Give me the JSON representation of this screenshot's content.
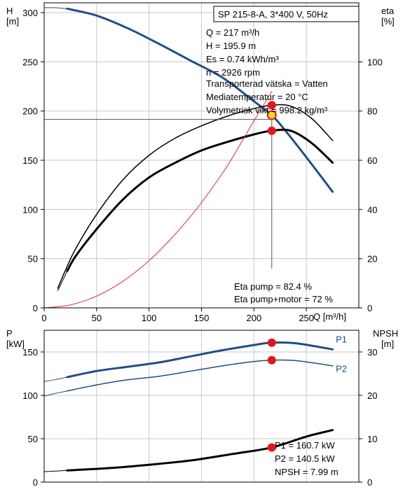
{
  "colors": {
    "head_curve": "#1f4e86",
    "power_curve": "#1f4e86",
    "efficiency": "#000000",
    "system_curve": "#e03030",
    "marker": "#e8141c",
    "marker_eta": "#f0e020",
    "grid": "#c8c8c8",
    "guide": "#555555"
  },
  "chart_data": [
    {
      "id": "upper",
      "type": "line",
      "xlabel": "Q [m³/h]",
      "ylabel_lines": [
        "H",
        "[m]"
      ],
      "y2label_lines": [
        "eta",
        "[%]"
      ],
      "xlim": [
        0,
        300
      ],
      "ylim": [
        0,
        310
      ],
      "y2lim": [
        0,
        124
      ],
      "x_ticks": [
        "0",
        "50",
        "100",
        "150",
        "200",
        "250"
      ],
      "x_tick_values": [
        0,
        50,
        100,
        150,
        200,
        250
      ],
      "y_ticks": [
        "0",
        "50",
        "100",
        "150",
        "200",
        "250",
        "300"
      ],
      "y_tick_values": [
        0,
        50,
        100,
        150,
        200,
        250,
        300
      ],
      "y2_ticks": [
        "0",
        "20",
        "40",
        "60",
        "80",
        "100"
      ],
      "y2_tick_values": [
        0,
        20,
        40,
        60,
        80,
        100
      ],
      "grid": true,
      "title": "SP 215-8-A, 3*400 V, 50Hz",
      "info_lines": [
        "Q = 217 m³/h",
        "H = 195.9 m",
        "Es = 0.74 kWh/m³",
        "n = 2926 rpm",
        "Transporterad vätska = Vatten",
        "Mediatemperatur = 20 °C",
        "Volymetrisk vikt = 998.2 kg/m³"
      ],
      "eta_lines": [
        "Eta pump = 82.4 %",
        "Eta pump+motor = 72 %"
      ],
      "series": [
        {
          "key": "H-thin",
          "axis": "y",
          "width": 1,
          "color_key": "head_curve",
          "x": [
            0,
            10,
            22
          ],
          "y": [
            305,
            305,
            304
          ]
        },
        {
          "key": "H",
          "axis": "y",
          "width": 3,
          "color_key": "head_curve",
          "x": [
            22,
            50,
            80,
            110,
            140,
            170,
            200,
            217,
            230,
            250,
            275
          ],
          "y": [
            304,
            297,
            284,
            268,
            251,
            234,
            210,
            195.9,
            180,
            153,
            118
          ]
        },
        {
          "key": "eta-pump",
          "axis": "y2",
          "width": 1.5,
          "color_key": "efficiency",
          "x": [
            13,
            20,
            30,
            50,
            75,
            100,
            125,
            150,
            175,
            200,
            217,
            235,
            255,
            275
          ],
          "y": [
            8,
            15,
            24,
            38,
            52,
            62,
            69,
            74,
            78,
            81,
            82.4,
            82,
            77,
            68
          ]
        },
        {
          "key": "eta-pump-motor",
          "axis": "y2",
          "width": 3,
          "color_key": "efficiency",
          "x": [
            22,
            30,
            50,
            75,
            100,
            125,
            150,
            175,
            200,
            217,
            235,
            255,
            275
          ],
          "y": [
            15,
            21,
            32,
            44,
            53,
            59,
            64,
            67.5,
            70.5,
            72,
            72,
            67,
            59
          ]
        },
        {
          "key": "eta-motor-thin",
          "axis": "y2",
          "width": 1,
          "color_key": "efficiency",
          "x": [
            13,
            22
          ],
          "y": [
            7,
            15
          ]
        },
        {
          "key": "system",
          "axis": "y",
          "width": 1,
          "color_key": "system_curve",
          "x": [
            0,
            25,
            50,
            75,
            100,
            125,
            150,
            175,
            200,
            217
          ],
          "y": [
            0,
            3,
            12,
            27,
            48,
            75,
            107,
            145,
            190,
            220
          ]
        }
      ],
      "markers": [
        {
          "x": 217,
          "y": 206,
          "axis": "y",
          "color_key": "marker"
        },
        {
          "x": 217,
          "y": 195.9,
          "axis": "y",
          "color_key": "marker_eta"
        },
        {
          "x": 217,
          "y": 180,
          "axis": "y",
          "color_key": "marker"
        }
      ],
      "guides": [
        {
          "x1": 0,
          "y1": 191.5,
          "x2": 217,
          "y2": 191.5
        },
        {
          "x1": 217,
          "y1": 191.5,
          "x2": 217,
          "y2": 40
        }
      ]
    },
    {
      "id": "lower",
      "type": "line",
      "ylabel_lines": [
        "P",
        "[kW]"
      ],
      "y2label_lines": [
        "NPSH",
        "[m]"
      ],
      "xlim": [
        0,
        300
      ],
      "ylim": [
        0,
        175
      ],
      "y2lim": [
        0,
        35
      ],
      "y_ticks": [
        "0",
        "50",
        "100",
        "150"
      ],
      "y_tick_values": [
        0,
        50,
        100,
        150
      ],
      "y2_ticks": [
        "0",
        "10",
        "20",
        "30"
      ],
      "y2_tick_values": [
        0,
        10,
        20,
        30
      ],
      "grid": true,
      "series_labels": [
        {
          "name": "P1",
          "x": 278,
          "y": 161
        },
        {
          "name": "P2",
          "x": 278,
          "y": 127
        }
      ],
      "result_lines": [
        "P1 = 160.7 kW",
        "P2 = 140.5 kW",
        "NPSH = 7.99 m"
      ],
      "series": [
        {
          "key": "P1-thin",
          "axis": "y",
          "width": 1,
          "color_key": "power_curve",
          "x": [
            0,
            10,
            22
          ],
          "y": [
            116,
            118,
            121
          ]
        },
        {
          "key": "P1",
          "axis": "y",
          "width": 3,
          "color_key": "power_curve",
          "x": [
            22,
            50,
            80,
            110,
            140,
            170,
            200,
            217,
            240,
            275
          ],
          "y": [
            121,
            128,
            133,
            138,
            145,
            152,
            158,
            160.7,
            160,
            153
          ]
        },
        {
          "key": "P2-thin",
          "axis": "y",
          "width": 1,
          "color_key": "power_curve",
          "x": [
            0,
            10,
            22
          ],
          "y": [
            99,
            102,
            105
          ]
        },
        {
          "key": "P2",
          "axis": "y",
          "width": 1.5,
          "color_key": "power_curve",
          "x": [
            22,
            50,
            80,
            110,
            140,
            170,
            200,
            217,
            240,
            275
          ],
          "y": [
            105,
            112,
            118,
            122,
            128,
            134,
            139,
            140.5,
            140,
            134
          ]
        },
        {
          "key": "NPSH-thin",
          "axis": "y2",
          "width": 1,
          "color_key": "efficiency",
          "x": [
            0,
            22
          ],
          "y": [
            2.4,
            2.7
          ]
        },
        {
          "key": "NPSH",
          "axis": "y2",
          "width": 3,
          "color_key": "efficiency",
          "x": [
            22,
            60,
            100,
            140,
            180,
            217,
            250,
            275
          ],
          "y": [
            2.7,
            3.2,
            4.0,
            5.0,
            6.5,
            7.99,
            10.5,
            12
          ]
        }
      ],
      "markers": [
        {
          "x": 217,
          "y": 160.7,
          "axis": "y",
          "color_key": "marker"
        },
        {
          "x": 217,
          "y": 140.5,
          "axis": "y",
          "color_key": "marker"
        },
        {
          "x": 217,
          "y": 7.99,
          "axis": "y2",
          "color_key": "marker"
        }
      ]
    }
  ]
}
